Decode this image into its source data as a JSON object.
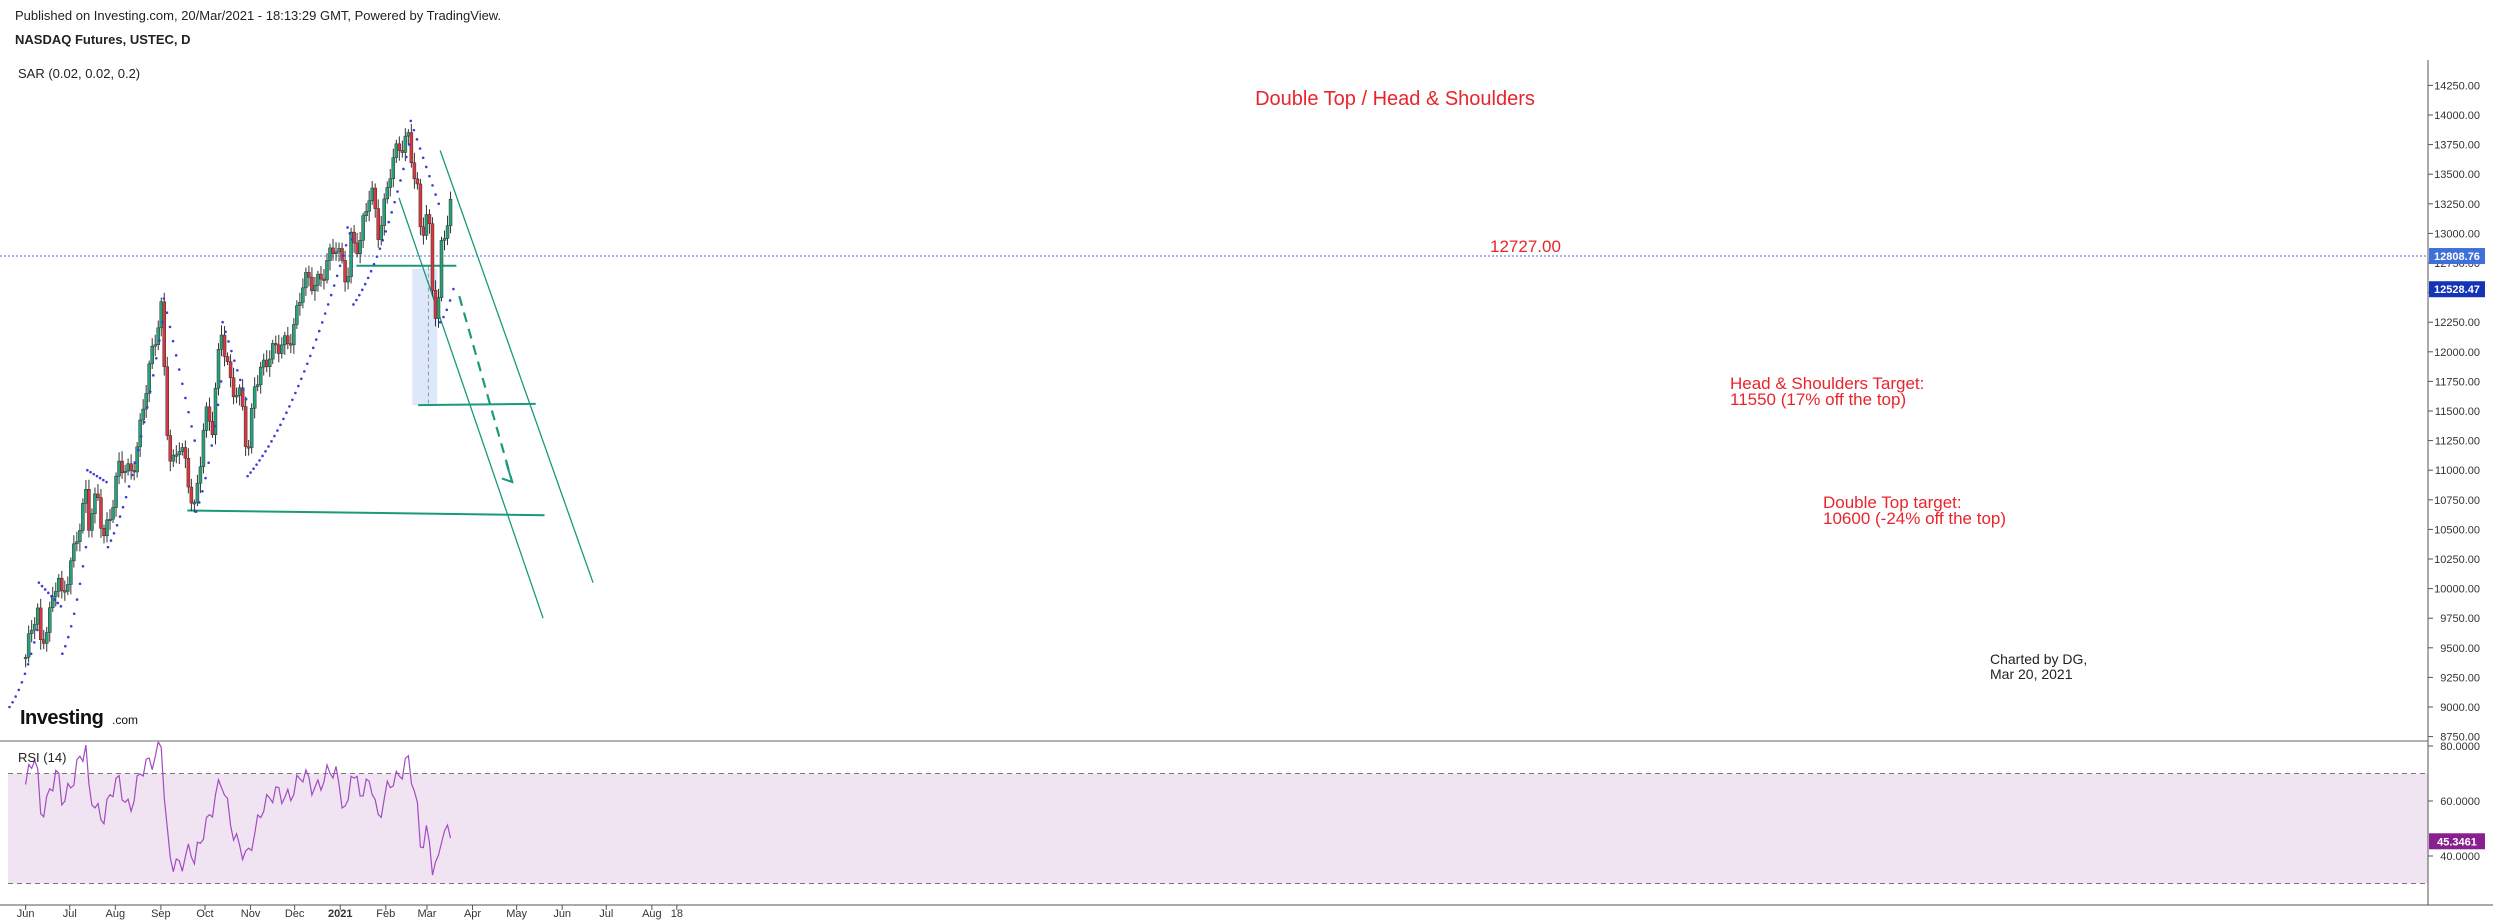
{
  "header": {
    "published": "Published on Investing.com, 20/Mar/2021 - 18:13:29 GMT, Powered by TradingView.",
    "symbol": "NASDAQ Futures, USTEC, D",
    "indicator": "SAR (0.02, 0.02, 0.2)"
  },
  "logo": {
    "main": "Investing",
    "suffix": ".com"
  },
  "rsi_label": "RSI (14)",
  "colors": {
    "up": "#26a17b",
    "down": "#d9363e",
    "sar": "#3c3cd8",
    "rsi": "#a24bc2",
    "rsi_band": "#f1e4f2",
    "annotation": "#e8242c",
    "line": "#1a9a7b",
    "price_tag": "#3f6fd8",
    "sar_tag": "#1434b8",
    "rsi_tag": "#8a1f8f"
  },
  "chart_data": {
    "type": "candlestick",
    "title": "Double Top / Head & Shoulders",
    "y_axis": {
      "range": [
        8750,
        14400
      ],
      "ticks": [
        "14250.00",
        "14000.00",
        "13750.00",
        "13500.00",
        "13250.00",
        "13000.00",
        "12750.00",
        "12500.00",
        "12250.00",
        "12000.00",
        "11750.00",
        "11500.00",
        "11250.00",
        "11000.00",
        "10750.00",
        "10500.00",
        "10250.00",
        "10000.00",
        "9750.00",
        "9500.00",
        "9250.00",
        "9000.00",
        "8750.00"
      ]
    },
    "rsi_axis": {
      "range": [
        23,
        86
      ],
      "ticks": [
        "80.0000",
        "60.0000",
        "40.0000"
      ],
      "bands": [
        70,
        30
      ]
    },
    "x_axis": {
      "labels": [
        "Jun",
        "Jul",
        "Aug",
        "Sep",
        "Oct",
        "Nov",
        "Dec",
        "2021",
        "Feb",
        "Mar",
        "Apr",
        "May",
        "Jun",
        "Jul",
        "Aug",
        "18"
      ]
    },
    "price_tags": {
      "last": "12808.76",
      "sar": "12528.47",
      "rsi": "45.3461"
    },
    "last_price": 12808.76,
    "price_series": [
      [
        "2020-06-01",
        9420
      ],
      [
        "2020-06-09",
        9800
      ],
      [
        "2020-06-11",
        9500
      ],
      [
        "2020-06-23",
        10120
      ],
      [
        "2020-06-26",
        9820
      ],
      [
        "2020-07-06",
        10500
      ],
      [
        "2020-07-13",
        10850
      ],
      [
        "2020-07-14",
        10520
      ],
      [
        "2020-07-20",
        10750
      ],
      [
        "2020-07-24",
        10450
      ],
      [
        "2020-07-31",
        10800
      ],
      [
        "2020-08-03",
        11000
      ],
      [
        "2020-08-11",
        10950
      ],
      [
        "2020-08-14",
        11100
      ],
      [
        "2020-08-21",
        11650
      ],
      [
        "2020-08-28",
        12050
      ],
      [
        "2020-09-02",
        12420
      ],
      [
        "2020-09-04",
        11600
      ],
      [
        "2020-09-08",
        11050
      ],
      [
        "2020-09-14",
        11200
      ],
      [
        "2020-09-21",
        10800
      ],
      [
        "2020-09-24",
        10700
      ],
      [
        "2020-10-01",
        11500
      ],
      [
        "2020-10-06",
        11300
      ],
      [
        "2020-10-12",
        12200
      ],
      [
        "2020-10-19",
        11750
      ],
      [
        "2020-10-26",
        11550
      ],
      [
        "2020-10-30",
        11050
      ],
      [
        "2020-11-04",
        11800
      ],
      [
        "2020-11-09",
        11900
      ],
      [
        "2020-11-16",
        11950
      ],
      [
        "2020-11-24",
        12100
      ],
      [
        "2020-11-30",
        12200
      ],
      [
        "2020-12-07",
        12550
      ],
      [
        "2020-12-14",
        12600
      ],
      [
        "2020-12-21",
        12700
      ],
      [
        "2020-12-29",
        12850
      ],
      [
        "2021-01-06",
        12650
      ],
      [
        "2021-01-08",
        13000
      ],
      [
        "2021-01-14",
        12850
      ],
      [
        "2021-01-22",
        13400
      ],
      [
        "2021-01-27",
        13050
      ],
      [
        "2021-02-01",
        13300
      ],
      [
        "2021-02-05",
        13550
      ],
      [
        "2021-02-12",
        13750
      ],
      [
        "2021-02-16",
        13880
      ],
      [
        "2021-02-19",
        13650
      ],
      [
        "2021-02-23",
        13300
      ],
      [
        "2021-02-25",
        12900
      ],
      [
        "2021-03-02",
        13200
      ],
      [
        "2021-03-04",
        12600
      ],
      [
        "2021-03-08",
        12300
      ],
      [
        "2021-03-11",
        12950
      ],
      [
        "2021-03-15",
        13100
      ],
      [
        "2021-03-17",
        13200
      ],
      [
        "2021-03-19",
        12810
      ]
    ],
    "rsi_series": [
      [
        "2020-06-01",
        66
      ],
      [
        "2020-06-08",
        76
      ],
      [
        "2020-06-11",
        56
      ],
      [
        "2020-06-22",
        70
      ],
      [
        "2020-06-26",
        58
      ],
      [
        "2020-07-06",
        74
      ],
      [
        "2020-07-13",
        78
      ],
      [
        "2020-07-14",
        62
      ],
      [
        "2020-07-24",
        55
      ],
      [
        "2020-08-03",
        67
      ],
      [
        "2020-08-11",
        58
      ],
      [
        "2020-08-21",
        72
      ],
      [
        "2020-09-02",
        82
      ],
      [
        "2020-09-04",
        50
      ],
      [
        "2020-09-08",
        36
      ],
      [
        "2020-09-21",
        42
      ],
      [
        "2020-09-24",
        36
      ],
      [
        "2020-10-01",
        52
      ],
      [
        "2020-10-12",
        66
      ],
      [
        "2020-10-19",
        52
      ],
      [
        "2020-10-30",
        37
      ],
      [
        "2020-11-09",
        60
      ],
      [
        "2020-11-24",
        62
      ],
      [
        "2020-12-07",
        68
      ],
      [
        "2020-12-14",
        66
      ],
      [
        "2020-12-29",
        70
      ],
      [
        "2021-01-06",
        56
      ],
      [
        "2021-01-08",
        72
      ],
      [
        "2021-01-14",
        61
      ],
      [
        "2021-01-22",
        70
      ],
      [
        "2021-01-27",
        52
      ],
      [
        "2021-02-05",
        68
      ],
      [
        "2021-02-16",
        74
      ],
      [
        "2021-02-23",
        55
      ],
      [
        "2021-02-25",
        44
      ],
      [
        "2021-03-02",
        52
      ],
      [
        "2021-03-04",
        36
      ],
      [
        "2021-03-08",
        33
      ],
      [
        "2021-03-11",
        47
      ],
      [
        "2021-03-17",
        51
      ],
      [
        "2021-03-19",
        45.35
      ]
    ],
    "annotations": [
      {
        "text": "12727.00"
      },
      {
        "lines": [
          "Head & Shoulders Target:",
          "11550 (17% off the top)"
        ]
      },
      {
        "lines": [
          "Double Top target:",
          "10600 (-24% off the top)"
        ]
      },
      {
        "lines": [
          "Charted by DG,",
          "Mar 20, 2021"
        ]
      }
    ]
  }
}
